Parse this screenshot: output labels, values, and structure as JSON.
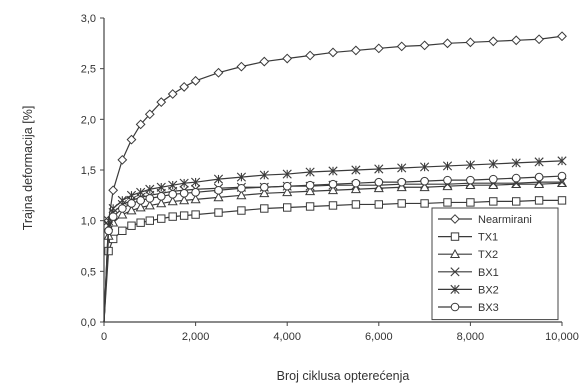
{
  "chart_data": {
    "type": "line",
    "title": "",
    "xlabel": "Broj ciklusa opterećenja",
    "ylabel": "Trajna deformacija [%]",
    "xlim": [
      0,
      10000
    ],
    "ylim": [
      0,
      3.0
    ],
    "x_ticks": [
      0,
      2000,
      4000,
      6000,
      8000,
      10000
    ],
    "x_tick_labels": [
      "0",
      "2,000",
      "4,000",
      "6,000",
      "8,000",
      "10,000"
    ],
    "y_ticks": [
      0,
      0.5,
      1.0,
      1.5,
      2.0,
      2.5,
      3.0
    ],
    "y_tick_labels": [
      "0,0",
      "0,5",
      "1,0",
      "1,5",
      "2,0",
      "2,5",
      "3,0"
    ],
    "grid": false,
    "legend_position": "bottom-right",
    "series": [
      {
        "name": "Nearmirani",
        "marker": "diamond",
        "x": [
          0,
          100,
          200,
          400,
          600,
          800,
          1000,
          1250,
          1500,
          1750,
          2000,
          2500,
          3000,
          3500,
          4000,
          4500,
          5000,
          5500,
          6000,
          6500,
          7000,
          7500,
          8000,
          8500,
          9000,
          9500,
          10000
        ],
        "y": [
          0,
          1.0,
          1.3,
          1.6,
          1.8,
          1.95,
          2.05,
          2.17,
          2.25,
          2.32,
          2.38,
          2.46,
          2.52,
          2.57,
          2.6,
          2.63,
          2.66,
          2.68,
          2.7,
          2.72,
          2.73,
          2.75,
          2.76,
          2.77,
          2.78,
          2.79,
          2.82
        ]
      },
      {
        "name": "TX1",
        "marker": "square",
        "x": [
          0,
          100,
          200,
          400,
          600,
          800,
          1000,
          1250,
          1500,
          1750,
          2000,
          2500,
          3000,
          3500,
          4000,
          4500,
          5000,
          5500,
          6000,
          6500,
          7000,
          7500,
          8000,
          8500,
          9000,
          9500,
          10000
        ],
        "y": [
          0,
          0.7,
          0.82,
          0.9,
          0.95,
          0.98,
          1.0,
          1.02,
          1.04,
          1.05,
          1.06,
          1.08,
          1.1,
          1.12,
          1.13,
          1.14,
          1.15,
          1.16,
          1.16,
          1.17,
          1.17,
          1.18,
          1.18,
          1.19,
          1.19,
          1.2,
          1.2
        ]
      },
      {
        "name": "TX2",
        "marker": "triangle",
        "x": [
          0,
          100,
          200,
          400,
          600,
          800,
          1000,
          1250,
          1500,
          1750,
          2000,
          2500,
          3000,
          3500,
          4000,
          4500,
          5000,
          5500,
          6000,
          6500,
          7000,
          7500,
          8000,
          8500,
          9000,
          9500,
          10000
        ],
        "y": [
          0,
          0.85,
          0.98,
          1.06,
          1.1,
          1.13,
          1.15,
          1.17,
          1.19,
          1.2,
          1.21,
          1.23,
          1.25,
          1.27,
          1.28,
          1.29,
          1.3,
          1.31,
          1.32,
          1.33,
          1.33,
          1.34,
          1.35,
          1.35,
          1.36,
          1.36,
          1.37
        ]
      },
      {
        "name": "BX1",
        "marker": "x-star",
        "x": [
          0,
          100,
          200,
          400,
          600,
          800,
          1000,
          1250,
          1500,
          1750,
          2000,
          2500,
          3000,
          3500,
          4000,
          4500,
          5000,
          5500,
          6000,
          6500,
          7000,
          7500,
          8000,
          8500,
          9000,
          9500,
          10000
        ],
        "y": [
          0,
          0.95,
          1.08,
          1.16,
          1.2,
          1.23,
          1.25,
          1.27,
          1.29,
          1.3,
          1.31,
          1.32,
          1.33,
          1.33,
          1.34,
          1.34,
          1.35,
          1.35,
          1.35,
          1.36,
          1.36,
          1.36,
          1.37,
          1.37,
          1.37,
          1.38,
          1.38
        ]
      },
      {
        "name": "BX2",
        "marker": "asterisk",
        "x": [
          0,
          100,
          200,
          400,
          600,
          800,
          1000,
          1250,
          1500,
          1750,
          2000,
          2500,
          3000,
          3500,
          4000,
          4500,
          5000,
          5500,
          6000,
          6500,
          7000,
          7500,
          8000,
          8500,
          9000,
          9500,
          10000
        ],
        "y": [
          0,
          1.0,
          1.12,
          1.2,
          1.25,
          1.28,
          1.31,
          1.33,
          1.35,
          1.37,
          1.38,
          1.41,
          1.43,
          1.45,
          1.46,
          1.48,
          1.49,
          1.5,
          1.51,
          1.52,
          1.53,
          1.54,
          1.55,
          1.56,
          1.57,
          1.58,
          1.59
        ]
      },
      {
        "name": "BX3",
        "marker": "circle",
        "x": [
          0,
          100,
          200,
          400,
          600,
          800,
          1000,
          1250,
          1500,
          1750,
          2000,
          2500,
          3000,
          3500,
          4000,
          4500,
          5000,
          5500,
          6000,
          6500,
          7000,
          7500,
          8000,
          8500,
          9000,
          9500,
          10000
        ],
        "y": [
          0,
          0.9,
          1.04,
          1.12,
          1.17,
          1.2,
          1.22,
          1.24,
          1.26,
          1.27,
          1.28,
          1.3,
          1.32,
          1.33,
          1.34,
          1.35,
          1.36,
          1.37,
          1.38,
          1.38,
          1.39,
          1.4,
          1.4,
          1.41,
          1.42,
          1.43,
          1.44
        ]
      }
    ]
  }
}
